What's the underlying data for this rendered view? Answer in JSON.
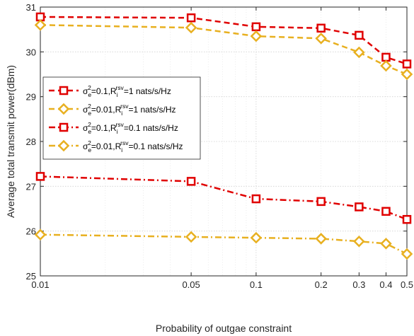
{
  "chart_data": {
    "type": "line",
    "xlabel": "Probability of outgae constraint",
    "ylabel": "Average total transmit power(dBm)",
    "xscale": "log",
    "xlim": [
      0.01,
      0.5
    ],
    "ylim": [
      25,
      31
    ],
    "x_ticks": [
      0.01,
      0.05,
      0.1,
      0.2,
      0.3,
      0.4,
      0.5
    ],
    "x_tick_labels": [
      "0.01",
      "0.05",
      "0.1",
      "0.2",
      "0.3",
      "0.4",
      "0.5"
    ],
    "y_ticks": [
      25,
      26,
      27,
      28,
      29,
      30,
      31
    ],
    "y_tick_labels": [
      "25",
      "26",
      "27",
      "28",
      "29",
      "30",
      "31"
    ],
    "grid": true,
    "legend_position": "left-middle",
    "x": [
      0.01,
      0.05,
      0.1,
      0.2,
      0.3,
      0.4,
      0.5
    ],
    "series": [
      {
        "legend_parts": [
          "σ",
          "e",
          "2",
          "=0.1,R",
          "i",
          "rsv",
          "=1 nats/s/Hz"
        ],
        "values": [
          30.78,
          30.76,
          30.56,
          30.53,
          30.37,
          29.88,
          29.73
        ],
        "color": "#e00000",
        "marker": "square",
        "dash": "dashed"
      },
      {
        "legend_parts": [
          "σ",
          "e",
          "2",
          "=0.01,R",
          "i",
          "rsv",
          "=1 nats/s/Hz"
        ],
        "values": [
          30.6,
          30.54,
          30.35,
          30.3,
          29.99,
          29.69,
          29.5
        ],
        "color": "#e8b020",
        "marker": "diamond",
        "dash": "dashed"
      },
      {
        "legend_parts": [
          "σ",
          "e",
          "2",
          "=0.1,R",
          "i",
          "rsv",
          "=0.1 nats/s/Hz"
        ],
        "values": [
          27.22,
          27.11,
          26.72,
          26.66,
          26.54,
          26.44,
          26.26
        ],
        "color": "#e00000",
        "marker": "square",
        "dash": "dashdot"
      },
      {
        "legend_parts": [
          "σ",
          "e",
          "2",
          "=0.01,R",
          "i",
          "rsv",
          "=0.1 nats/s/Hz"
        ],
        "values": [
          25.92,
          25.87,
          25.85,
          25.83,
          25.77,
          25.72,
          25.49
        ],
        "color": "#e8b020",
        "marker": "diamond",
        "dash": "dashdot"
      }
    ]
  }
}
